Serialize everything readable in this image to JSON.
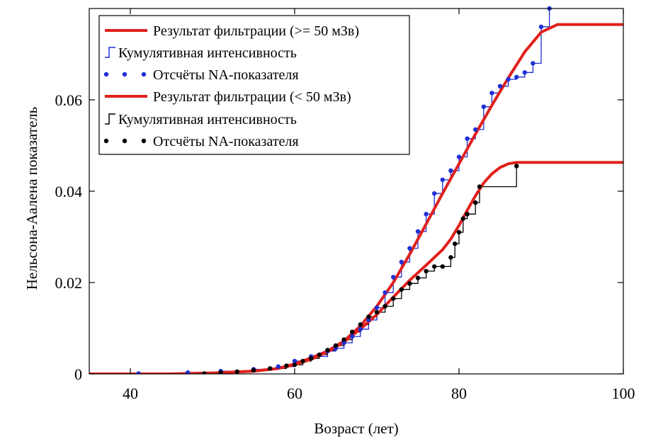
{
  "chart_data": {
    "type": "line",
    "title": "",
    "xlabel": "Возраст (лет)",
    "ylabel": "Нельсона-Аалена показатель",
    "xlim": [
      35,
      100
    ],
    "ylim": [
      0,
      0.08
    ],
    "xticks": [
      40,
      60,
      80,
      100
    ],
    "yticks": [
      0,
      0.02,
      0.04,
      0.06
    ],
    "ytick_labels": [
      "0",
      "0.02",
      "0.04",
      "0.06"
    ],
    "grid": false,
    "legend_position": "top-left",
    "colors": {
      "fit": "#e0201c",
      "blue": "#1f2fd6",
      "black": "#000000"
    },
    "legend": [
      {
        "label": "Результат фильтрации (>= 50 мЗв)",
        "style": "line",
        "color": "#e0201c"
      },
      {
        "label": "Кумулятивная интенсивность",
        "style": "step",
        "color": "#1f2fd6"
      },
      {
        "label": "Отсчёты NA-показателя",
        "style": "dots",
        "color": "#1f2fd6"
      },
      {
        "label": "Результат фильтрации (< 50 мЗв)",
        "style": "line",
        "color": "#e0201c"
      },
      {
        "label": "Кумулятивная интенсивность",
        "style": "step",
        "color": "#000000"
      },
      {
        "label": "Отсчёты NA-показателя",
        "style": "dots",
        "color": "#000000"
      }
    ],
    "series": [
      {
        "name": "Результат фильтрации (>= 50 мЗв)",
        "kind": "line",
        "color": "#e0201c",
        "x": [
          35,
          45,
          50,
          55,
          58,
          60,
          62,
          64,
          66,
          68,
          70,
          72,
          74,
          76,
          78,
          80,
          82,
          84,
          86,
          88,
          90,
          92,
          100
        ],
        "y": [
          0,
          0,
          0.0002,
          0.0006,
          0.0012,
          0.0022,
          0.0035,
          0.005,
          0.0072,
          0.0105,
          0.0148,
          0.02,
          0.0262,
          0.0328,
          0.0395,
          0.046,
          0.0525,
          0.0588,
          0.0648,
          0.0705,
          0.0748,
          0.0765,
          0.0765
        ]
      },
      {
        "name": "Кумулятивная интенсивность",
        "kind": "step",
        "color": "#1f2fd6",
        "x": [
          41,
          47,
          51,
          55,
          58,
          60,
          62,
          64,
          65,
          66,
          67,
          68,
          69,
          70,
          71,
          72,
          73,
          74,
          75,
          76,
          77,
          78,
          79,
          80,
          81,
          82,
          83,
          84,
          85,
          86,
          87,
          88,
          89,
          90,
          91
        ],
        "y": [
          0.0001,
          0.0003,
          0.0006,
          0.001,
          0.0016,
          0.0028,
          0.0038,
          0.005,
          0.0056,
          0.0068,
          0.0082,
          0.0098,
          0.0118,
          0.0145,
          0.0178,
          0.0212,
          0.0245,
          0.0275,
          0.0312,
          0.035,
          0.0395,
          0.0425,
          0.0445,
          0.0475,
          0.0515,
          0.0535,
          0.0585,
          0.0615,
          0.063,
          0.0645,
          0.065,
          0.066,
          0.068,
          0.076,
          0.08
        ]
      },
      {
        "name": "Отсчёты NA-показателя",
        "kind": "dots",
        "color": "#1f2fd6",
        "x": [
          41,
          47,
          51,
          55,
          58,
          60,
          62,
          64,
          65,
          66,
          67,
          68,
          69,
          70,
          71,
          72,
          73,
          74,
          75,
          76,
          77,
          78,
          79,
          80,
          81,
          82,
          83,
          84,
          85,
          86,
          87,
          88,
          89,
          90,
          91
        ],
        "y": [
          0.0001,
          0.0003,
          0.0006,
          0.001,
          0.0016,
          0.0028,
          0.0038,
          0.005,
          0.0056,
          0.0068,
          0.0082,
          0.0098,
          0.0118,
          0.0145,
          0.0178,
          0.0212,
          0.0245,
          0.0275,
          0.0312,
          0.035,
          0.0395,
          0.0425,
          0.0445,
          0.0475,
          0.0515,
          0.0535,
          0.0585,
          0.0615,
          0.063,
          0.0645,
          0.065,
          0.066,
          0.068,
          0.076,
          0.08
        ]
      },
      {
        "name": "Результат фильтрации (< 50 мЗв)",
        "kind": "line",
        "color": "#e0201c",
        "x": [
          35,
          45,
          50,
          55,
          58,
          60,
          62,
          64,
          66,
          68,
          70,
          72,
          74,
          76,
          78,
          79,
          80,
          81,
          82,
          83,
          84,
          85,
          86,
          87,
          88,
          100
        ],
        "y": [
          0,
          0,
          0.0002,
          0.0006,
          0.0012,
          0.002,
          0.0032,
          0.0048,
          0.007,
          0.0098,
          0.013,
          0.0168,
          0.0205,
          0.0238,
          0.0272,
          0.0295,
          0.0325,
          0.0358,
          0.039,
          0.0418,
          0.0438,
          0.0452,
          0.046,
          0.0463,
          0.0463,
          0.0463
        ]
      },
      {
        "name": "Кумулятивная интенсивность",
        "kind": "step",
        "color": "#000000",
        "x": [
          49,
          51,
          53,
          55,
          57,
          59,
          60,
          61,
          62,
          63,
          64,
          65,
          66,
          67,
          68,
          69,
          70,
          71,
          72,
          73,
          74,
          75,
          76,
          77,
          78,
          79,
          79.5,
          80,
          80.5,
          81,
          82,
          82.5,
          87
        ],
        "y": [
          0.0001,
          0.0003,
          0.0005,
          0.0008,
          0.0012,
          0.0018,
          0.002,
          0.0028,
          0.0034,
          0.0042,
          0.0052,
          0.0062,
          0.0075,
          0.0092,
          0.0108,
          0.0125,
          0.0135,
          0.0148,
          0.0165,
          0.0185,
          0.0198,
          0.021,
          0.0225,
          0.0235,
          0.0235,
          0.0255,
          0.0285,
          0.031,
          0.034,
          0.035,
          0.0375,
          0.041,
          0.0455
        ]
      },
      {
        "name": "Отсчёты NA-показателя",
        "kind": "dots",
        "color": "#000000",
        "x": [
          49,
          51,
          53,
          55,
          57,
          59,
          60,
          61,
          62,
          63,
          64,
          65,
          66,
          67,
          68,
          69,
          70,
          71,
          72,
          73,
          74,
          75,
          76,
          77,
          78,
          79,
          79.5,
          80,
          80.5,
          81,
          82,
          82.5,
          87
        ],
        "y": [
          0.0001,
          0.0003,
          0.0005,
          0.0008,
          0.0012,
          0.0018,
          0.002,
          0.0028,
          0.0034,
          0.0042,
          0.0052,
          0.0062,
          0.0075,
          0.0092,
          0.0108,
          0.0125,
          0.0135,
          0.0148,
          0.0165,
          0.0185,
          0.0198,
          0.021,
          0.0225,
          0.0235,
          0.0235,
          0.0255,
          0.0285,
          0.031,
          0.034,
          0.035,
          0.0375,
          0.041,
          0.0455
        ]
      }
    ]
  }
}
